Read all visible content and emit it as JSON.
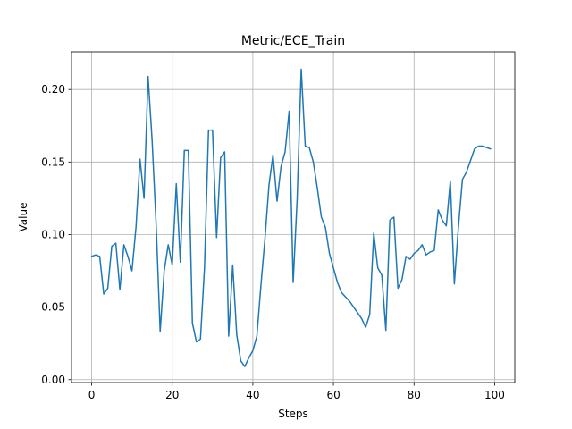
{
  "chart_data": {
    "type": "line",
    "title": "Metric/ECE_Train",
    "xlabel": "Steps",
    "ylabel": "Value",
    "xlim": [
      -5,
      105
    ],
    "ylim": [
      -0.002,
      0.226
    ],
    "grid": true,
    "x_ticks": [
      0,
      20,
      40,
      60,
      80,
      100
    ],
    "x_tick_labels": [
      "0",
      "20",
      "40",
      "60",
      "80",
      "100"
    ],
    "y_ticks": [
      0.0,
      0.05,
      0.1,
      0.15,
      0.2
    ],
    "y_tick_labels": [
      "0.00",
      "0.05",
      "0.10",
      "0.15",
      "0.20"
    ],
    "color": "#1f77b4",
    "series": [
      {
        "x": [
          0,
          1,
          2,
          3,
          4,
          5,
          6,
          7,
          8,
          9,
          10,
          11,
          12,
          13,
          14,
          15,
          16,
          17,
          18,
          19,
          20,
          21,
          22,
          23,
          24,
          25,
          26,
          27,
          28,
          29,
          30,
          31,
          32,
          33,
          34,
          35,
          36,
          37,
          38,
          39,
          40,
          41,
          42,
          43,
          44,
          45,
          46,
          47,
          48,
          49,
          50,
          51,
          52,
          53,
          54,
          55,
          56,
          57,
          58,
          59,
          60,
          61,
          62,
          63,
          64,
          65,
          66,
          67,
          68,
          69,
          70,
          71,
          72,
          73,
          74,
          75,
          76,
          77,
          78,
          79,
          80,
          81,
          82,
          83,
          84,
          85,
          86,
          87,
          88,
          89,
          90,
          91,
          92,
          93,
          94,
          95,
          96,
          97,
          98,
          99
        ],
        "values": [
          0.085,
          0.086,
          0.085,
          0.059,
          0.063,
          0.092,
          0.094,
          0.062,
          0.093,
          0.085,
          0.075,
          0.105,
          0.152,
          0.125,
          0.209,
          0.165,
          0.107,
          0.033,
          0.075,
          0.093,
          0.079,
          0.135,
          0.081,
          0.158,
          0.158,
          0.039,
          0.026,
          0.028,
          0.077,
          0.172,
          0.172,
          0.098,
          0.153,
          0.157,
          0.03,
          0.079,
          0.031,
          0.013,
          0.009,
          0.015,
          0.02,
          0.03,
          0.065,
          0.097,
          0.134,
          0.155,
          0.123,
          0.147,
          0.157,
          0.185,
          0.067,
          0.125,
          0.214,
          0.161,
          0.16,
          0.15,
          0.132,
          0.112,
          0.105,
          0.087,
          0.077,
          0.067,
          0.06,
          0.057,
          0.054,
          0.05,
          0.046,
          0.042,
          0.036,
          0.045,
          0.101,
          0.077,
          0.072,
          0.034,
          0.11,
          0.112,
          0.063,
          0.069,
          0.085,
          0.083,
          0.087,
          0.089,
          0.093,
          0.086,
          0.088,
          0.089,
          0.117,
          0.11,
          0.106,
          0.137,
          0.066,
          0.105,
          0.138,
          0.143,
          0.151,
          0.159,
          0.161,
          0.161,
          0.16,
          0.159
        ]
      }
    ]
  }
}
